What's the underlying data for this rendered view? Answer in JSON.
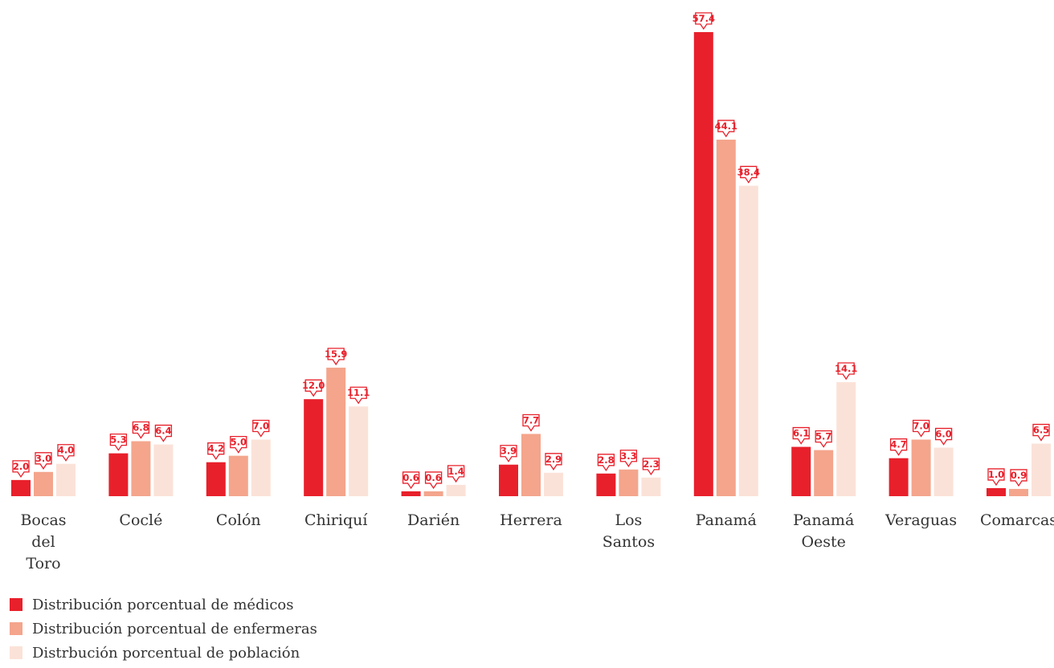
{
  "chart_data": {
    "type": "bar",
    "title": "",
    "xlabel": "",
    "ylabel": "",
    "ylim": [
      0,
      60
    ],
    "grid": false,
    "legend_position": "bottom-left",
    "categories": [
      [
        "Bocas",
        "del",
        "Toro"
      ],
      [
        "Coclé"
      ],
      [
        "Colón"
      ],
      [
        "Chiriquí"
      ],
      [
        "Darién"
      ],
      [
        "Herrera"
      ],
      [
        "Los",
        "Santos"
      ],
      [
        "Panamá"
      ],
      [
        "Panamá",
        "Oeste"
      ],
      [
        "Veraguas"
      ],
      [
        "Comarcas"
      ]
    ],
    "series": [
      {
        "name": "Distribución porcentual de médicos",
        "color": "#e8202b",
        "values": [
          2.0,
          5.3,
          4.2,
          12.0,
          0.6,
          3.9,
          2.8,
          57.4,
          6.1,
          4.7,
          1.0
        ]
      },
      {
        "name": "Distribución porcentual de enfermeras",
        "color": "#f4a58c",
        "values": [
          3.0,
          6.8,
          5.0,
          15.9,
          0.6,
          7.7,
          3.3,
          44.1,
          5.7,
          7.0,
          0.9
        ]
      },
      {
        "name": "Distrbución porcentual de población",
        "color": "#fbe2d8",
        "values": [
          4.0,
          6.4,
          7.0,
          11.1,
          1.4,
          2.9,
          2.3,
          38.4,
          14.1,
          6.0,
          6.5
        ]
      }
    ],
    "label_color": "#e8202b"
  }
}
